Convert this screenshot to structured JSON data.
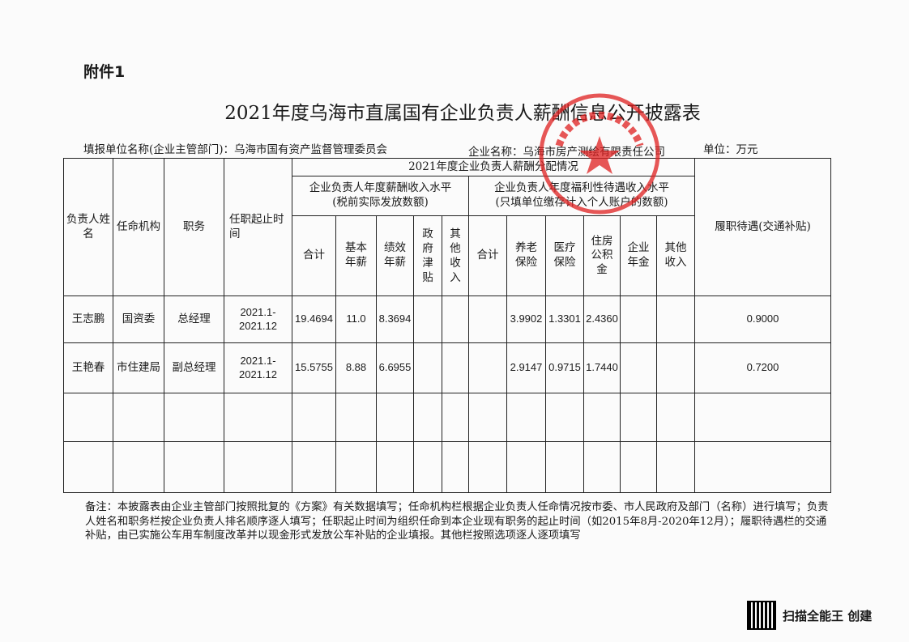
{
  "attachment_label": "附件1",
  "title": "2021年度乌海市直属国有企业负责人薪酬信息公开披露表",
  "reporting_unit": "填报单位名称(企业主管部门)：乌海市国有资产监督管理委员会",
  "company": "企业名称：乌海市房产测绘有限责任公司",
  "unit": "单位：万元",
  "headers": {
    "name": "负责人姓名",
    "appointing_body": "任命机构",
    "position": "职务",
    "term": "任职起止时间",
    "distribution": "2021年度企业负责人薪酬分配情况",
    "salary_group": "企业负责人年度薪酬收入水平",
    "salary_group_note": "(税前实际发放数额)",
    "welfare_group": "企业负责人年度福利性待遇收入水平",
    "welfare_group_note": "(只填单位缴存计入个人账户的数额)",
    "allowance": "履职待遇(交通补贴)",
    "salary_cols": [
      "合计",
      "基本年薪",
      "绩效年薪",
      "政府津贴",
      "其他收入"
    ],
    "welfare_cols": [
      "合计",
      "养老保险",
      "医疗保险",
      "住房公积金",
      "企业年金",
      "其他收入"
    ]
  },
  "rows": [
    {
      "name": "王志鹏",
      "body": "国资委",
      "position": "总经理",
      "term": "2021.1-2021.12",
      "salary": [
        "19.4694",
        "11.0",
        "8.3694",
        "",
        ""
      ],
      "welfare": [
        "",
        "3.9902",
        "1.3301",
        "2.4360",
        "",
        ""
      ],
      "allowance": "0.9000"
    },
    {
      "name": "王艳春",
      "body": "市住建局",
      "position": "副总经理",
      "term": "2021.1-2021.12",
      "salary": [
        "15.5755",
        "8.88",
        "6.6955",
        "",
        ""
      ],
      "welfare": [
        "",
        "2.9147",
        "0.9715",
        "1.7440",
        "",
        ""
      ],
      "allowance": "0.7200"
    }
  ],
  "notes": "备注：本披露表由企业主管部门按照批复的《方案》有关数据填写；任命机构栏根据企业负责人任命情况按市委、市人民政府及部门（名称）进行填写；负责人姓名和职务栏按企业负责人排名顺序逐人填写；任职起止时间为组织任命到本企业现有职务的起止时间（如2015年8月-2020年12月）；履职待遇栏的交通补贴，由已实施公车用车制度改革并以现金形式发放公车补贴的企业填报。其他栏按照选项逐人逐项填写",
  "scanner_label": "扫描全能王 创建",
  "stamp_color": "#e02020"
}
